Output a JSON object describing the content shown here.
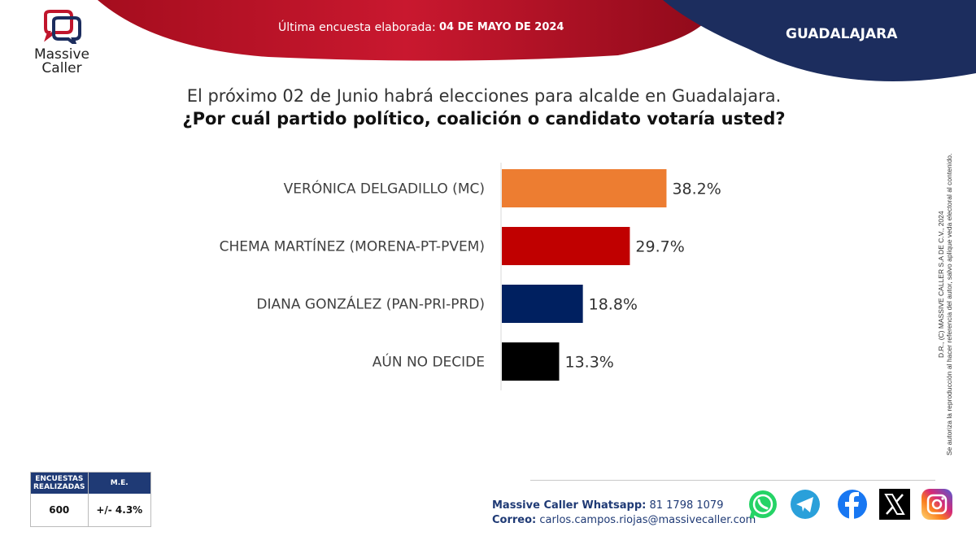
{
  "brand": {
    "name_line1": "Massive",
    "name_line2": "Caller",
    "color_red": "#c0152c",
    "color_navy": "#1c2d5e"
  },
  "header": {
    "survey_label": "Última encuesta elaborada:",
    "survey_date": "04 DE MAYO DE 2024",
    "city": "GUADALAJARA"
  },
  "question": {
    "line1": "El próximo 02 de Junio habrá elecciones para alcalde en Guadalajara.",
    "line2": "¿Por cuál partido político, coalición o candidato votaría usted?"
  },
  "chart_data": {
    "type": "bar",
    "orientation": "horizontal",
    "title": "¿Por cuál partido político, coalición o candidato votaría usted?",
    "categories": [
      "VERÓNICA DELGADILLO (MC)",
      "CHEMA MARTÍNEZ (MORENA-PT-PVEM)",
      "DIANA GONZÁLEZ (PAN-PRI-PRD)",
      "AÚN NO DECIDE"
    ],
    "values": [
      38.2,
      29.7,
      18.8,
      13.3
    ],
    "value_labels": [
      "38.2%",
      "29.7%",
      "18.8%",
      "13.3%"
    ],
    "colors": [
      "#ed7d31",
      "#c00000",
      "#002060",
      "#000000"
    ],
    "unit": "%",
    "xlim": [
      0,
      100
    ],
    "grid": false
  },
  "stats": {
    "header_samples": "ENCUESTAS REALIZADAS",
    "header_me": "M.E.",
    "samples": "600",
    "me": "+/- 4.3%"
  },
  "contact": {
    "whatsapp_label": "Massive Caller Whatsapp:",
    "whatsapp_number": "81 1798 1079",
    "email_label": "Correo:",
    "email": "carlos.campos.riojas@massivecaller.com"
  },
  "legal": {
    "line1": "D.R., (C) MASSIVE CALLER S.A DE C.V., 2024",
    "line2": "Se autoriza la reproducción al hacer referencia del autor, salvo aplique veda electoral al contenido."
  },
  "social_icons": [
    "whatsapp-icon",
    "telegram-icon",
    "facebook-icon",
    "x-icon",
    "instagram-icon"
  ]
}
